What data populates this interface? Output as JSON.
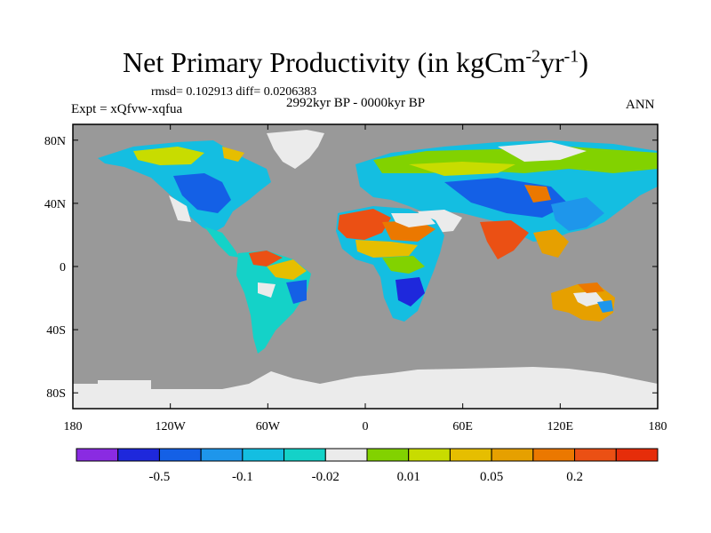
{
  "title": {
    "prefix": "Net Primary Productivity (in kgCm",
    "exp1": "-2",
    "mid": "yr",
    "exp2": "-1",
    "suffix": ")"
  },
  "stats": {
    "rmsd_label": "rmsd=",
    "rmsd": "0.102913",
    "diff_label": "diff=",
    "diff": "0.0206383"
  },
  "experiment": "Expt = xQfvw-xqfua",
  "period": "2992kyr BP - 0000kyr BP",
  "season": "ANN",
  "map": {
    "lon_ticks": [
      "180",
      "120W",
      "60W",
      "0",
      "60E",
      "120E",
      "180"
    ],
    "lat_ticks": [
      "80N",
      "40N",
      "0",
      "40S",
      "80S"
    ],
    "ocean_color": "#999999",
    "land_missing_color": "#ebebeb"
  },
  "colorbar": {
    "colors": [
      "#8a2be2",
      "#1e28dc",
      "#1460e6",
      "#1e96eb",
      "#14bee1",
      "#14d2c8",
      "#ebebeb",
      "#82d200",
      "#c8dc00",
      "#e6be00",
      "#e6a000",
      "#eb7800",
      "#eb5014",
      "#e62d0a"
    ],
    "labels": [
      {
        "text": "-0.5",
        "index": 1
      },
      {
        "text": "-0.1",
        "index": 3
      },
      {
        "text": "-0.02",
        "index": 5
      },
      {
        "text": "0.01",
        "index": 7
      },
      {
        "text": "0.05",
        "index": 9
      },
      {
        "text": "0.2",
        "index": 11
      }
    ]
  }
}
